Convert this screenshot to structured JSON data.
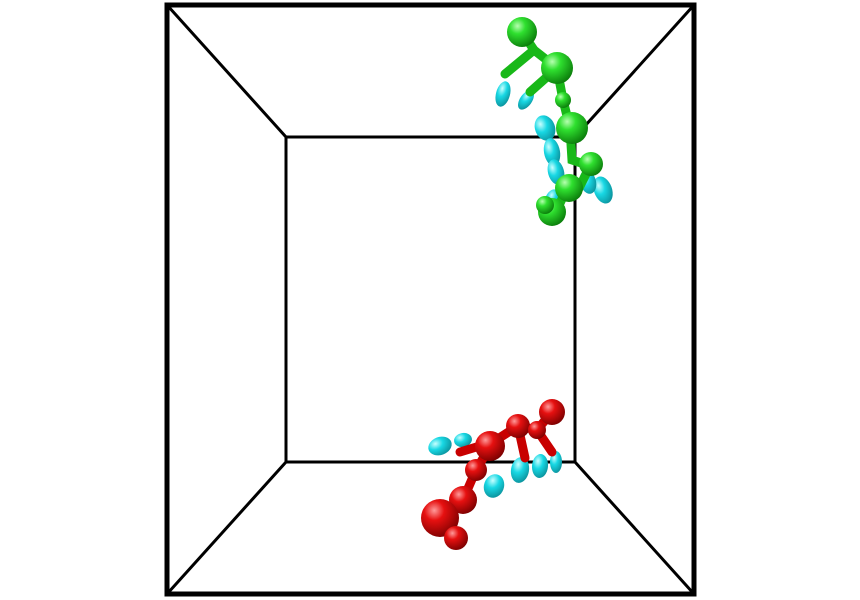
{
  "scene": {
    "kind": "molecular-simulation-box",
    "colors": {
      "background": "#ffffff",
      "box_edge": "#000000",
      "chain_a": "#1fd11f",
      "chain_b": "#e00000",
      "dipole": "#16d6e0"
    },
    "chains": [
      {
        "name": "green-chain",
        "color_key": "chain_a",
        "bead_count": 9
      },
      {
        "name": "red-chain",
        "color_key": "chain_b",
        "bead_count": 9
      }
    ]
  }
}
